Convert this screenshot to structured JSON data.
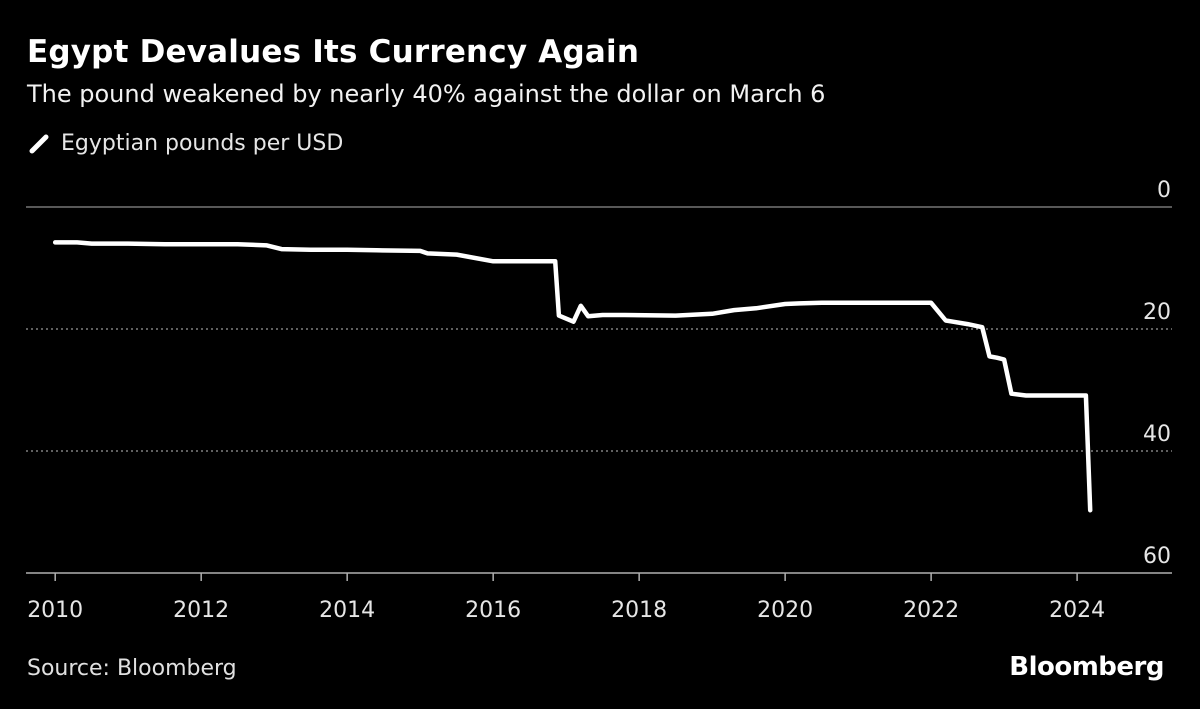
{
  "chart_data": {
    "type": "line",
    "title": "Egypt Devalues Its Currency Again",
    "subtitle": "The pound weakened by nearly 40% against the dollar on March 6",
    "legend": [
      "Egyptian pounds per USD"
    ],
    "legend_placement": "top-left",
    "xlabel": "",
    "ylabel": "",
    "xlim": [
      2009.6,
      2025.3
    ],
    "ylim": [
      0,
      60
    ],
    "y_inverted": true,
    "y_axis_side": "right",
    "x_ticks": [
      2010,
      2012,
      2014,
      2016,
      2018,
      2020,
      2022,
      2024
    ],
    "x_tick_labels": [
      "2010",
      "2012",
      "2014",
      "2016",
      "2018",
      "2020",
      "2022",
      "2024"
    ],
    "y_ticks": [
      0,
      20,
      40,
      60
    ],
    "y_tick_labels": [
      "0",
      "20",
      "40",
      "60"
    ],
    "grid": "horizontal dotted",
    "series": [
      {
        "name": "Egyptian pounds per USD",
        "color": "#ffffff",
        "x": [
          2010.0,
          2010.3,
          2010.5,
          2011.0,
          2011.5,
          2012.0,
          2012.5,
          2012.9,
          2013.1,
          2013.5,
          2014.0,
          2014.4,
          2015.0,
          2015.1,
          2015.5,
          2016.0,
          2016.2,
          2016.85,
          2016.9,
          2017.1,
          2017.2,
          2017.3,
          2017.5,
          2017.8,
          2018.5,
          2019.0,
          2019.3,
          2019.6,
          2020.0,
          2020.2,
          2020.5,
          2020.9,
          2021.3,
          2022.0,
          2022.2,
          2022.3,
          2022.5,
          2022.7,
          2022.8,
          2022.9,
          2023.0,
          2023.1,
          2023.3,
          2024.0,
          2024.12,
          2024.18
        ],
        "values": [
          5.8,
          5.8,
          6.0,
          6.0,
          6.1,
          6.1,
          6.1,
          6.3,
          6.9,
          7.0,
          7.0,
          7.1,
          7.2,
          7.6,
          7.8,
          8.9,
          8.9,
          8.9,
          17.8,
          18.8,
          16.2,
          17.9,
          17.7,
          17.7,
          17.8,
          17.5,
          16.9,
          16.6,
          15.9,
          15.8,
          15.7,
          15.7,
          15.7,
          15.7,
          18.6,
          18.8,
          19.2,
          19.7,
          24.5,
          24.7,
          25.0,
          30.6,
          30.9,
          30.9,
          30.9,
          49.7
        ]
      }
    ]
  },
  "footer": {
    "source": "Source: Bloomberg",
    "brand": "Bloomberg"
  }
}
